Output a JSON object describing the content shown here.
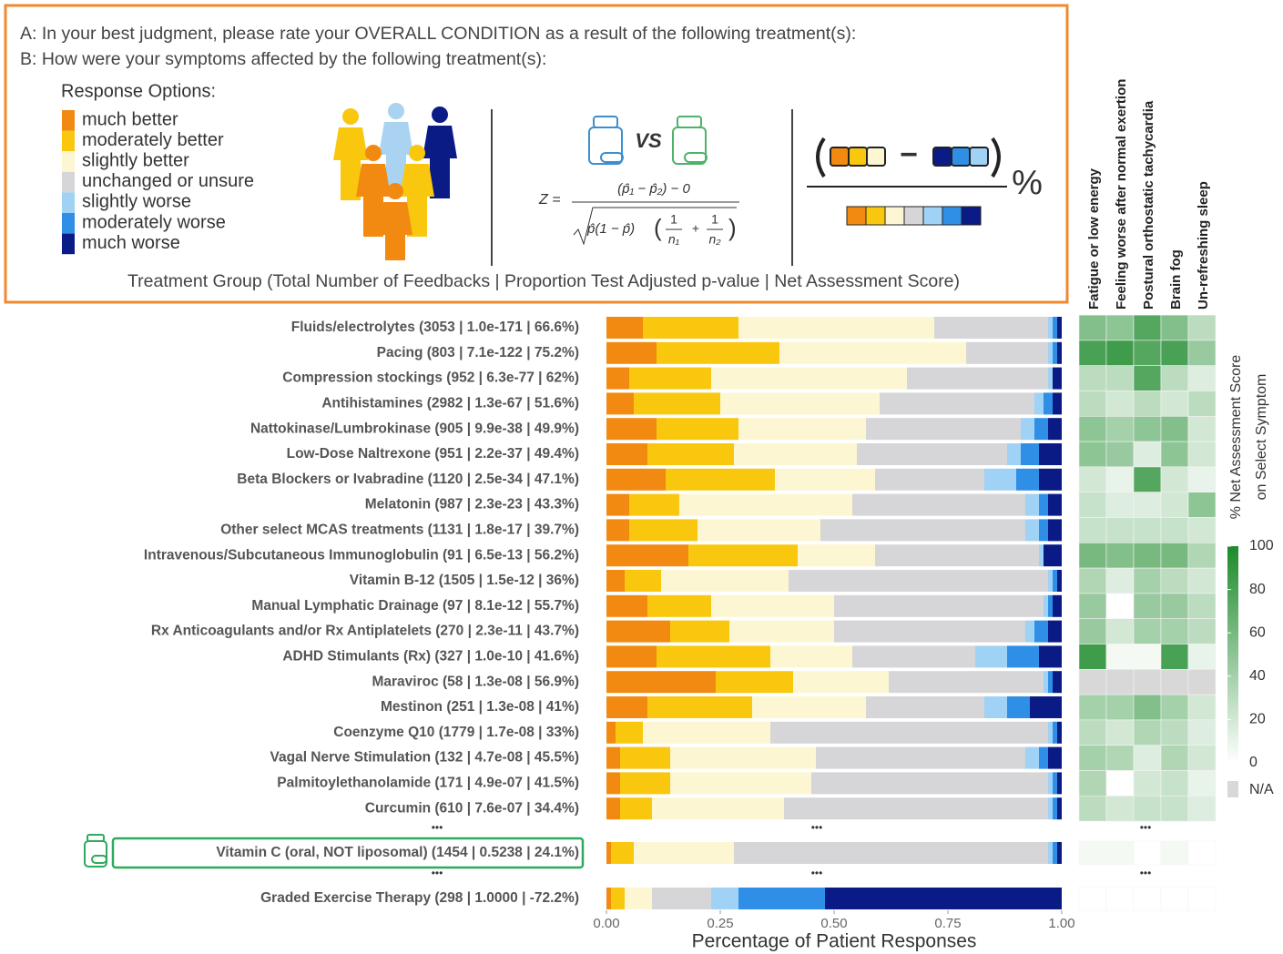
{
  "header": {
    "question_a": "A: In your best judgment, please rate your OVERALL CONDITION as a result of the following treatment(s):",
    "question_b": "B: How were your symptoms affected by the following treatment(s):",
    "response_title": "Response Options:",
    "formula": {
      "vs": "VS",
      "lhs": "Z =",
      "numerator": "(p̂₁ − p̂₂) − 0",
      "radicand": "p̂(1 − p̂)",
      "one": "1",
      "n1": "n₁",
      "n2": "n₂"
    },
    "net_minus": "−",
    "net_percent": "%",
    "caption": "Treatment Group (Total Number of Feedbacks | Proportion Test Adjusted p-value | Net Assessment Score)"
  },
  "chart_data": [
    {
      "type": "stacked_barh",
      "xlabel": "Percentage of Patient Responses",
      "ellipsis": "•••",
      "xlim": [
        0,
        1
      ],
      "xticks": [
        {
          "value": 0,
          "label": "0.00"
        },
        {
          "value": 0.25,
          "label": "0.25"
        },
        {
          "value": 0.5,
          "label": "0.50"
        },
        {
          "value": 0.75,
          "label": "0.75"
        },
        {
          "value": 1,
          "label": "1.00"
        }
      ],
      "categories": [
        "Fluids/electrolytes (3053 | 1.0e-171 | 66.6%)",
        "Pacing (803 | 7.1e-122 | 75.2%)",
        "Compression stockings (952 | 6.3e-77 | 62%)",
        "Antihistamines (2982 | 1.3e-67 | 51.6%)",
        "Nattokinase/Lumbrokinase (905 | 9.9e-38 | 49.9%)",
        "Low-Dose Naltrexone (951 | 2.2e-37 | 49.4%)",
        "Beta Blockers or Ivabradine (1120 | 2.5e-34 | 47.1%)",
        "Melatonin (987 | 2.3e-23 | 43.3%)",
        "Other select MCAS treatments (1131 | 1.8e-17 | 39.7%)",
        "Intravenous/Subcutaneous Immunoglobulin (91 | 6.5e-13 | 56.2%)",
        "Vitamin B-12 (1505 | 1.5e-12 | 36%)",
        "Manual Lymphatic Drainage (97 | 8.1e-12 | 55.7%)",
        "Rx Anticoagulants and/or Rx Antiplatelets (270 | 2.3e-11 | 43.7%)",
        "ADHD Stimulants (Rx) (327 | 1.0e-10 | 41.6%)",
        "Maraviroc (58 | 1.3e-08 | 56.9%)",
        "Mestinon (251 | 1.3e-08 | 41%)",
        "Coenzyme Q10 (1779 | 1.7e-08 | 33%)",
        "Vagal Nerve Stimulation (132 | 4.7e-08 | 45.5%)",
        "Palmitoylethanolamide (171 | 4.9e-07 | 41.5%)",
        "Curcumin (610 | 7.6e-07 | 34.4%)",
        "Vitamin C (oral, NOT liposomal) (1454 | 0.5238 | 24.1%)",
        "Graded Exercise Therapy (298 | 1.0000 | -72.2%)"
      ],
      "series": [
        {
          "name": "much better",
          "color": "#f28a12",
          "values": [
            0.08,
            0.11,
            0.05,
            0.06,
            0.11,
            0.09,
            0.13,
            0.05,
            0.05,
            0.18,
            0.04,
            0.09,
            0.14,
            0.11,
            0.24,
            0.09,
            0.02,
            0.03,
            0.03,
            0.03,
            0.01,
            0.01
          ]
        },
        {
          "name": "moderately better",
          "color": "#f9c80e",
          "values": [
            0.21,
            0.27,
            0.18,
            0.19,
            0.18,
            0.19,
            0.24,
            0.11,
            0.15,
            0.24,
            0.08,
            0.14,
            0.13,
            0.25,
            0.17,
            0.23,
            0.06,
            0.11,
            0.11,
            0.07,
            0.05,
            0.03
          ]
        },
        {
          "name": "slightly better",
          "color": "#fcf7d2",
          "values": [
            0.43,
            0.41,
            0.43,
            0.35,
            0.28,
            0.27,
            0.22,
            0.38,
            0.27,
            0.17,
            0.28,
            0.27,
            0.23,
            0.18,
            0.21,
            0.25,
            0.28,
            0.32,
            0.31,
            0.29,
            0.22,
            0.06
          ]
        },
        {
          "name": "unchanged or unsure",
          "color": "#d6d6d8",
          "values": [
            0.25,
            0.18,
            0.31,
            0.34,
            0.34,
            0.33,
            0.24,
            0.38,
            0.45,
            0.36,
            0.57,
            0.46,
            0.42,
            0.27,
            0.34,
            0.26,
            0.61,
            0.46,
            0.52,
            0.58,
            0.69,
            0.13
          ]
        },
        {
          "name": "slightly worse",
          "color": "#9fd2f4",
          "values": [
            0.01,
            0.01,
            0.01,
            0.02,
            0.03,
            0.03,
            0.07,
            0.03,
            0.03,
            0.01,
            0.01,
            0.01,
            0.02,
            0.07,
            0.01,
            0.05,
            0.01,
            0.03,
            0.01,
            0.01,
            0.01,
            0.06
          ]
        },
        {
          "name": "moderately worse",
          "color": "#2f8fe6",
          "values": [
            0.01,
            0.01,
            0.0,
            0.02,
            0.03,
            0.04,
            0.05,
            0.02,
            0.02,
            0.0,
            0.01,
            0.01,
            0.03,
            0.07,
            0.01,
            0.05,
            0.01,
            0.02,
            0.01,
            0.01,
            0.01,
            0.19
          ]
        },
        {
          "name": "much worse",
          "color": "#0b1b86",
          "values": [
            0.01,
            0.01,
            0.02,
            0.02,
            0.03,
            0.05,
            0.05,
            0.03,
            0.03,
            0.04,
            0.01,
            0.02,
            0.03,
            0.05,
            0.02,
            0.07,
            0.01,
            0.03,
            0.01,
            0.01,
            0.01,
            0.52
          ]
        }
      ]
    },
    {
      "type": "heatmap",
      "x": [
        "Fatigue or low energy",
        "Feeling worse after normal exertion",
        "Postural orthostatic tachycardia",
        "Brain fog",
        "Un-refreshing sleep"
      ],
      "values": [
        [
          55,
          50,
          75,
          55,
          30
        ],
        [
          80,
          85,
          75,
          80,
          45
        ],
        [
          30,
          30,
          75,
          30,
          15
        ],
        [
          30,
          20,
          30,
          20,
          30
        ],
        [
          50,
          40,
          50,
          55,
          20
        ],
        [
          50,
          45,
          15,
          50,
          20
        ],
        [
          20,
          10,
          75,
          20,
          10
        ],
        [
          25,
          15,
          15,
          20,
          50
        ],
        [
          25,
          25,
          25,
          25,
          20
        ],
        [
          60,
          55,
          60,
          60,
          35
        ],
        [
          35,
          15,
          40,
          30,
          20
        ],
        [
          45,
          0,
          45,
          45,
          30
        ],
        [
          45,
          20,
          40,
          40,
          30
        ],
        [
          85,
          5,
          5,
          80,
          10
        ],
        [
          null,
          null,
          null,
          null,
          null
        ],
        [
          40,
          40,
          55,
          40,
          20
        ],
        [
          30,
          20,
          35,
          30,
          15
        ],
        [
          40,
          35,
          15,
          35,
          20
        ],
        [
          35,
          0,
          20,
          25,
          10
        ],
        [
          30,
          20,
          25,
          25,
          15
        ],
        [
          5,
          5,
          0,
          5,
          0
        ],
        [
          0,
          0,
          0,
          0,
          0
        ]
      ],
      "colorbar_title": [
        "% Net Assessment Score",
        "on Select Symptom"
      ],
      "zlim": [
        0,
        100
      ],
      "zticks": [
        0,
        20,
        40,
        60,
        80,
        100
      ],
      "cmap": [
        "#ffffff",
        "#1c8a2a"
      ],
      "na_label": "N/A",
      "na_color": "#d8d8d8"
    }
  ]
}
